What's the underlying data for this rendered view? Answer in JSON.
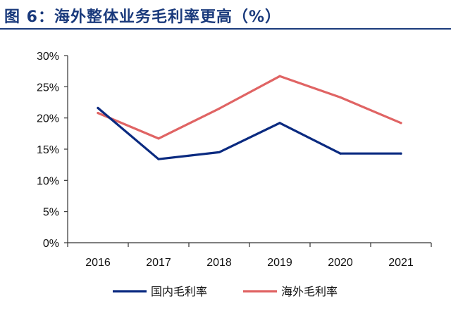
{
  "header": {
    "title": "图 6：海外整体业务毛利率更高（%）"
  },
  "colors": {
    "title": "#1a3a7c",
    "domestic": "#0a2a80",
    "overseas": "#e06464",
    "axis": "#333333"
  },
  "chart_data": {
    "type": "line",
    "title": "",
    "xlabel": "",
    "ylabel": "",
    "categories": [
      "2016",
      "2017",
      "2018",
      "2019",
      "2020",
      "2021"
    ],
    "ylim": [
      0,
      30
    ],
    "yticks": [
      0,
      5,
      10,
      15,
      20,
      25,
      30
    ],
    "ytick_labels": [
      "0%",
      "5%",
      "10%",
      "15%",
      "20%",
      "25%",
      "30%"
    ],
    "grid": false,
    "legend_position": "bottom",
    "series": [
      {
        "name": "国内毛利率",
        "color": "#0a2a80",
        "values": [
          21.6,
          13.4,
          14.5,
          19.2,
          14.3,
          14.3
        ]
      },
      {
        "name": "海外毛利率",
        "color": "#e06464",
        "values": [
          20.8,
          16.7,
          21.5,
          26.7,
          23.3,
          19.2
        ]
      }
    ]
  }
}
